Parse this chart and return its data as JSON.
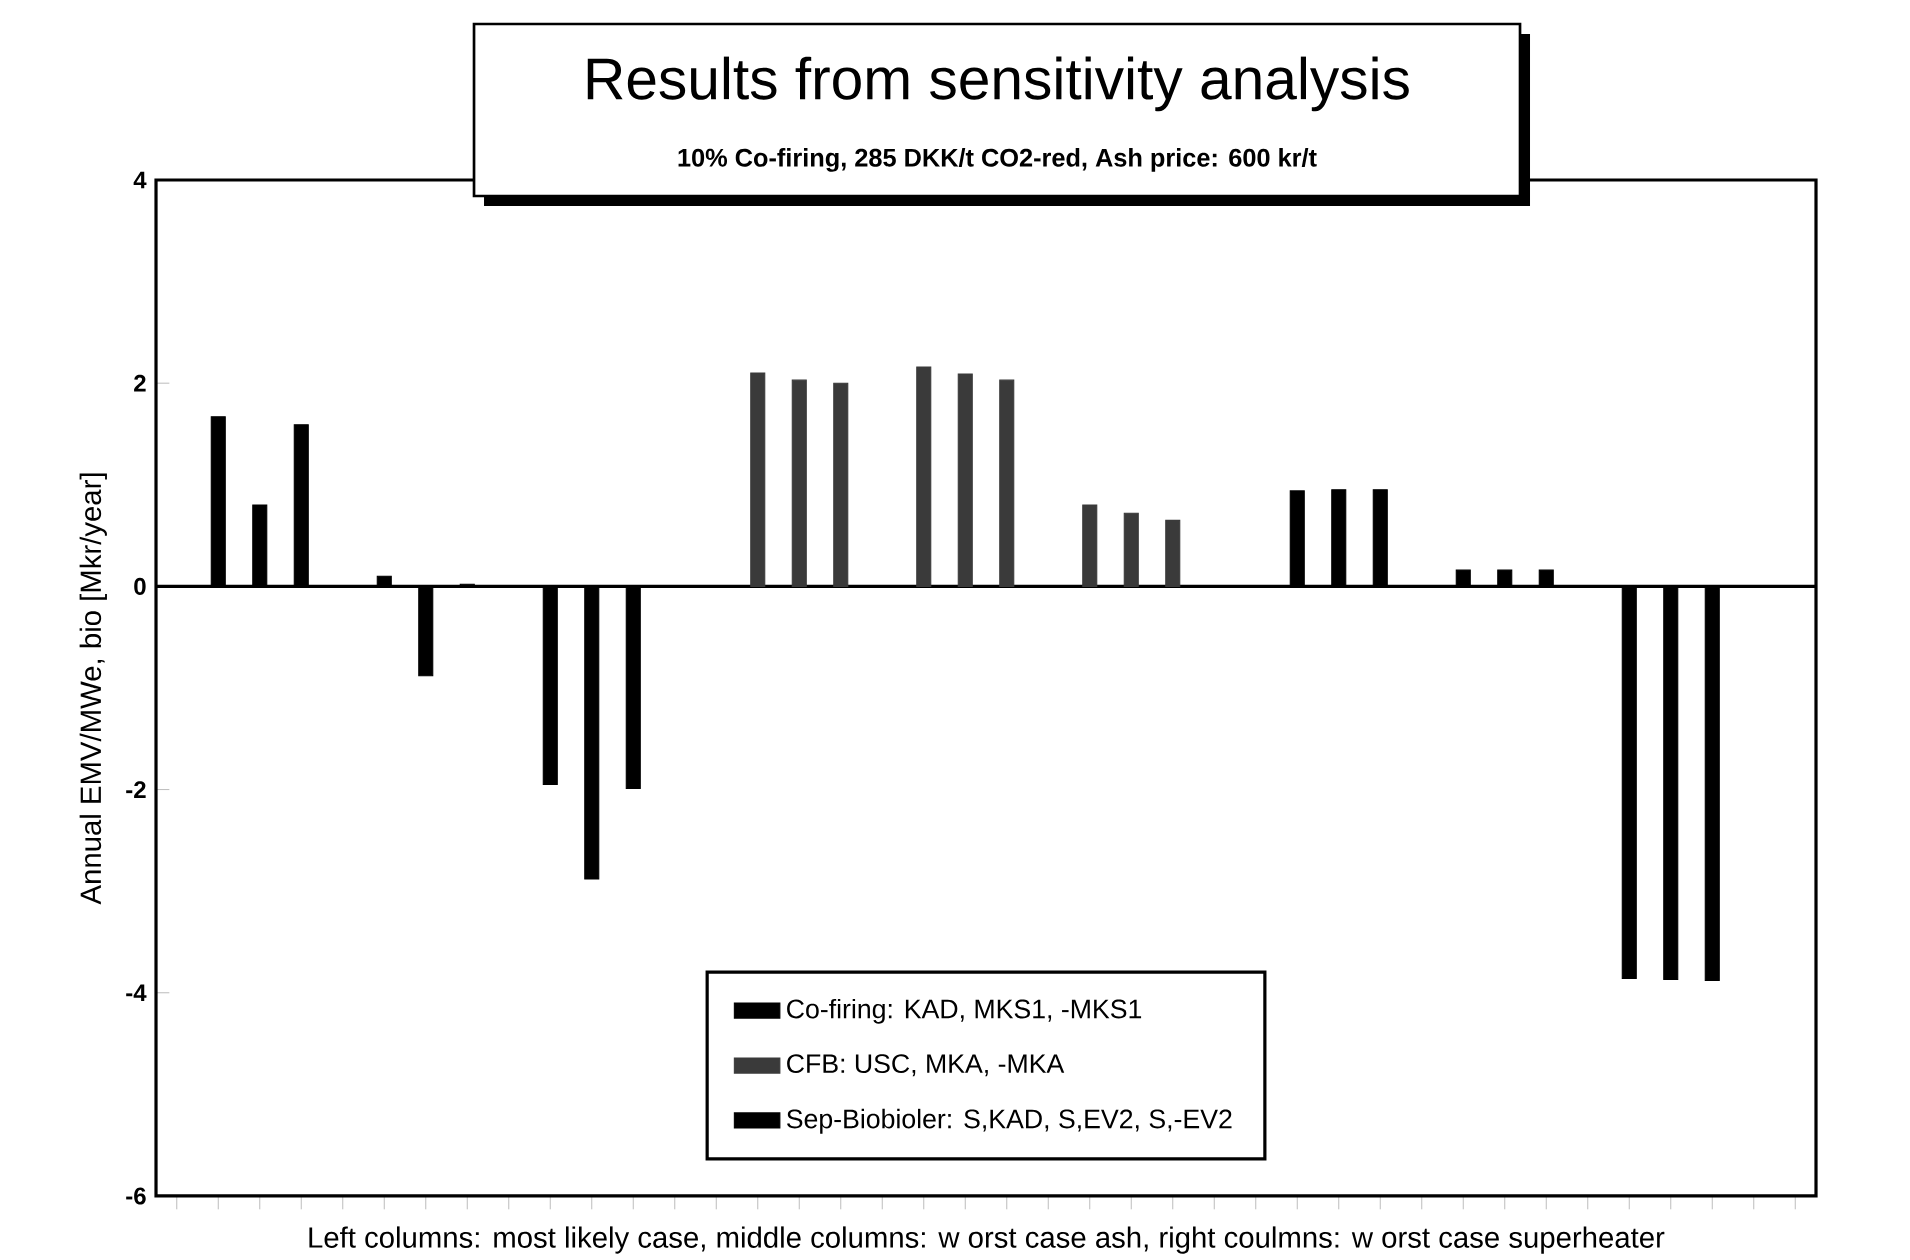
{
  "chart_data": {
    "type": "bar",
    "title": "Results from sensitivity analysis",
    "subtitle": "10% Co-firing, 285 DKK/t CO2-red, Ash price: 600 kr/t",
    "xlabel": "Left columns: most likely case, middle columns: w orst case ash, right coulmns: w orst case superheater",
    "ylabel": "Annual EMV/MWe, bio [Mkr/year]",
    "categories": [
      null,
      null,
      null,
      null,
      null,
      null,
      null,
      null,
      null,
      null,
      null,
      null,
      null,
      null,
      null,
      null,
      null,
      null,
      null,
      null,
      null,
      null,
      null,
      null,
      null,
      null,
      null,
      null,
      null,
      null,
      null,
      null,
      null,
      null,
      null,
      null,
      null,
      null,
      null,
      null
    ],
    "series": [
      {
        "name": "Co-firing: KAD, MKS1, -MKS1",
        "color": "#000000",
        "values": [
          null,
          1.67,
          0.8,
          1.59,
          null,
          0.1,
          -0.88,
          0.02,
          null,
          -1.95,
          -2.88,
          -1.99,
          null,
          null,
          null,
          null,
          null,
          null,
          null,
          null,
          null,
          null,
          null,
          null,
          null,
          null,
          null,
          null,
          null,
          null,
          null,
          null,
          null,
          null,
          null,
          null,
          null,
          null,
          null,
          null
        ]
      },
      {
        "name": "CFB: USC, MKA, -MKA",
        "color": "#3a3a3a",
        "values": [
          null,
          null,
          null,
          null,
          null,
          null,
          null,
          null,
          null,
          null,
          null,
          null,
          null,
          null,
          2.1,
          2.03,
          2.0,
          null,
          2.16,
          2.09,
          2.03,
          null,
          0.8,
          0.72,
          0.65,
          null,
          null,
          null,
          null,
          null,
          null,
          null,
          null,
          null,
          null,
          null,
          null,
          null,
          null,
          null
        ]
      },
      {
        "name": "Sep-Biobioler: S,KAD, S,EV2, S,-EV2",
        "color": "#000000",
        "values": [
          null,
          null,
          null,
          null,
          null,
          null,
          null,
          null,
          null,
          null,
          null,
          null,
          null,
          null,
          null,
          null,
          null,
          null,
          null,
          null,
          null,
          null,
          null,
          null,
          null,
          null,
          null,
          0.94,
          0.95,
          0.95,
          null,
          0.16,
          0.16,
          0.16,
          null,
          -3.86,
          -3.87,
          -3.88,
          null,
          null
        ]
      }
    ],
    "ylim": [
      -6,
      4
    ],
    "yticks": [
      -6,
      -4,
      -2,
      0,
      2,
      4
    ],
    "legend": "bottom"
  }
}
